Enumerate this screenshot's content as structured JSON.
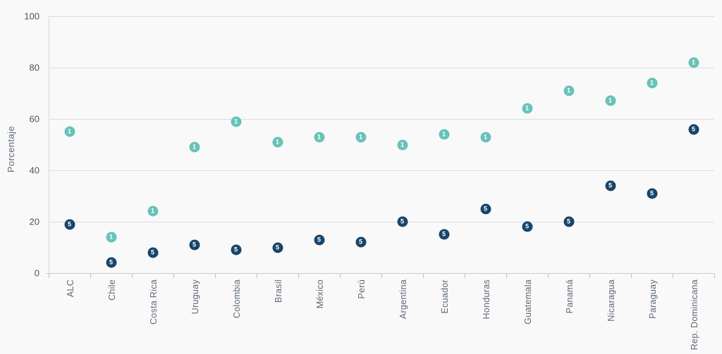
{
  "chart_data": {
    "type": "scatter",
    "title": "",
    "xlabel": "",
    "ylabel": "Porcentaje",
    "ylim": [
      0,
      100
    ],
    "yticks": [
      0,
      20,
      40,
      60,
      80,
      100
    ],
    "grid": true,
    "legend_position": "none",
    "marker_shape": "circle-with-number",
    "colors": {
      "series_1": "#68c2b8",
      "series_5": "#17456b",
      "background": "#f9f9fa",
      "gridline": "#dadce0",
      "axis_text": "#5d6974"
    },
    "categories": [
      "ALC",
      "Chile",
      "Costa Rica",
      "Uruguay",
      "Colombia",
      "Brasil",
      "México",
      "Perú",
      "Argentina",
      "Ecuador",
      "Honduras",
      "Guatemala",
      "Panamá",
      "Nicaragua",
      "Paraguay",
      "Rep. Dominicana"
    ],
    "series": [
      {
        "name": "1",
        "color": "#68c2b8",
        "values": [
          55,
          14,
          24,
          49,
          59,
          51,
          53,
          53,
          50,
          54,
          53,
          64,
          71,
          67,
          74,
          82
        ]
      },
      {
        "name": "5",
        "color": "#17456b",
        "values": [
          19,
          4,
          8,
          11,
          9,
          10,
          13,
          12,
          20,
          15,
          25,
          18,
          20,
          34,
          31,
          56
        ]
      }
    ]
  }
}
